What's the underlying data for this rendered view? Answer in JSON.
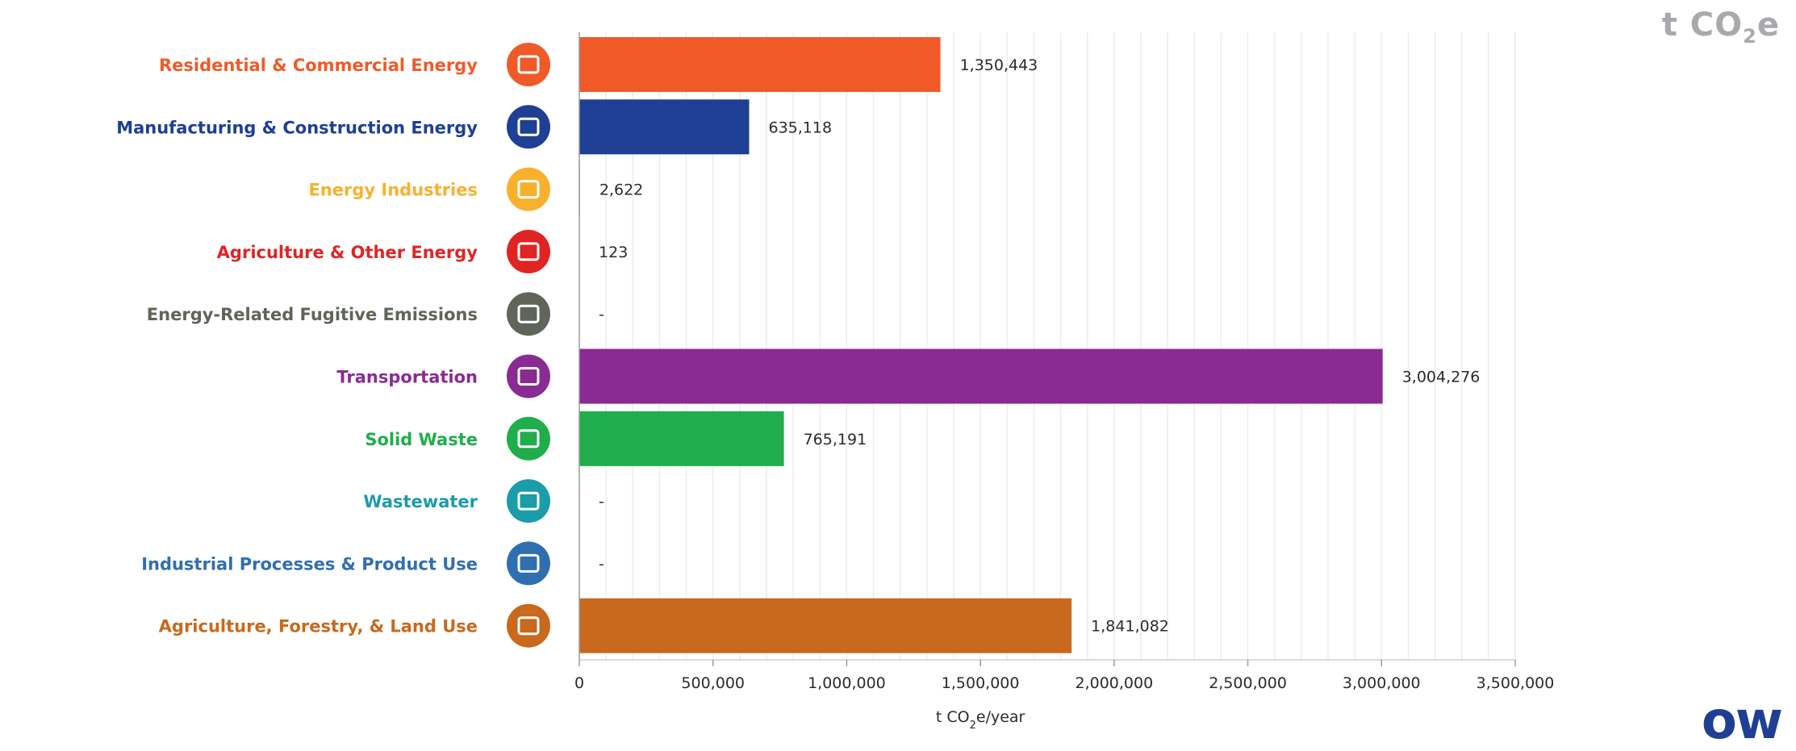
{
  "unit_title": {
    "main": "t CO",
    "sub": "2",
    "tail": "e"
  },
  "logo_text": "ow",
  "chart_data": {
    "type": "bar",
    "orientation": "horizontal",
    "categories": [
      "Residential & Commercial Energy",
      "Manufacturing & Construction Energy",
      "Energy Industries",
      "Agriculture & Other Energy",
      "Energy-Related Fugitive Emissions",
      "Transportation",
      "Solid Waste",
      "Wastewater",
      "Industrial Processes & Product Use",
      "Agriculture, Forestry, & Land Use"
    ],
    "values": [
      1350443,
      635118,
      2622,
      123,
      null,
      3004276,
      765191,
      null,
      null,
      1841082
    ],
    "value_labels": [
      "1,350,443",
      "635,118",
      "2,622",
      "123",
      "-",
      "3,004,276",
      "765,191",
      "-",
      "-",
      "1,841,082"
    ],
    "colors": [
      "#f05a28",
      "#1e3f93",
      "#f7b12e",
      "#e02424",
      "#5f6559",
      "#8a2b93",
      "#1fae4b",
      "#1a9cab",
      "#2f6fb0",
      "#c8691d"
    ],
    "icons": [
      "buildings-icon",
      "factory-icon",
      "power-plant-icon",
      "farm-field-icon",
      "gas-flare-icon",
      "bus-icon",
      "recycle-icon",
      "faucet-icon",
      "industrial-process-icon",
      "land-use-icon"
    ],
    "xlim": [
      0,
      3500000
    ],
    "xticks": [
      0,
      500000,
      1000000,
      1500000,
      2000000,
      2500000,
      3000000,
      3500000
    ],
    "xtick_labels": [
      "0",
      "500,000",
      "1,000,000",
      "1,500,000",
      "2,000,000",
      "2,500,000",
      "3,000,000",
      "3,500,000"
    ],
    "xlabel": {
      "main": "t CO",
      "sub": "2",
      "tail": "e/year"
    },
    "grid": true
  }
}
